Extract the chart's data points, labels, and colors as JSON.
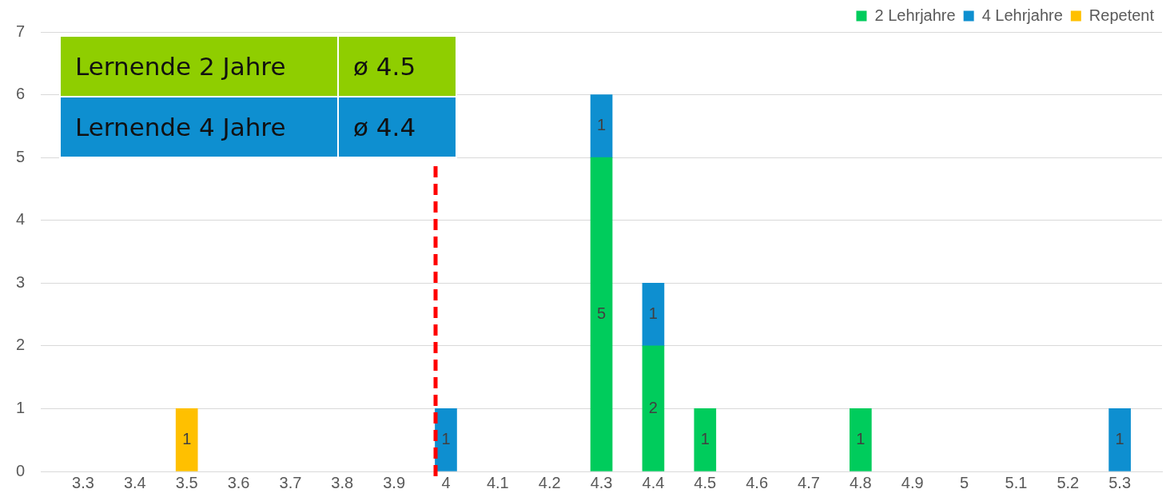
{
  "chart_data": {
    "type": "bar",
    "stacked": true,
    "x": [
      3.5,
      4,
      4.3,
      4.4,
      4.5,
      4.8,
      5.3
    ],
    "series": [
      {
        "name": "2 Lehrjahre",
        "color": "#00cc5c",
        "values": [
          null,
          null,
          5,
          2,
          1,
          1,
          null
        ]
      },
      {
        "name": "4 Lehrjahre",
        "color": "#0e8fd0",
        "values": [
          null,
          1,
          1,
          1,
          null,
          null,
          1
        ]
      },
      {
        "name": "Repetent",
        "color": "#ffc000",
        "values": [
          1,
          null,
          null,
          null,
          null,
          null,
          null
        ]
      }
    ],
    "xlim": [
      3.27,
      5.33
    ],
    "xticks": [
      3.3,
      3.4,
      3.5,
      3.6,
      3.7,
      3.8,
      3.9,
      4,
      4.1,
      4.2,
      4.3,
      4.4,
      4.5,
      4.6,
      4.7,
      4.8,
      4.9,
      5,
      5.1,
      5.2,
      5.3
    ],
    "ylim": [
      0,
      7
    ],
    "yticks": [
      0,
      1,
      2,
      3,
      4,
      5,
      6,
      7
    ],
    "ref_lines": [
      {
        "axis": "x",
        "value": 3.98,
        "color": "#ff0000",
        "line_style": "dashed"
      }
    ],
    "annotations": [
      "Lernende 2 Jahre",
      "ø 4.5",
      "Lernende 4 Jahre",
      "ø 4.4"
    ],
    "data_labels": true,
    "grid": "y",
    "legend": "top right"
  }
}
